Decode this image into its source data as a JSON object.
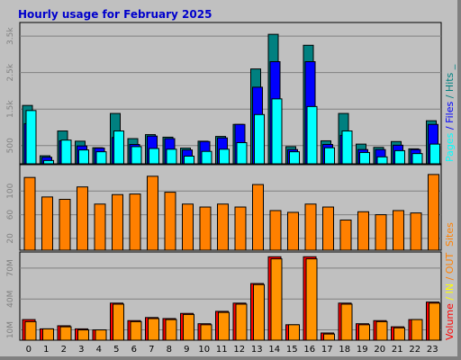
{
  "chart_data": {
    "type": "bar",
    "title": "Hourly usage for February 2025",
    "categories": [
      "0",
      "1",
      "2",
      "3",
      "4",
      "5",
      "6",
      "7",
      "8",
      "9",
      "10",
      "11",
      "12",
      "13",
      "14",
      "15",
      "16",
      "17",
      "18",
      "19",
      "20",
      "21",
      "22",
      "23"
    ],
    "colors": {
      "pages": "#00ffff",
      "files": "#0000ff",
      "hits": "#008080",
      "sites": "#ff8000",
      "volume": "#ff0000",
      "in": "#ffff00",
      "out": "#ff8000",
      "panel": "#c0c0c0",
      "grid": "#808080"
    },
    "panels": [
      {
        "id": "usage",
        "ylim": [
          0,
          3800
        ],
        "yticks": [
          500,
          1500,
          2500,
          3500
        ],
        "tick_labels": [
          "500",
          "1.5k",
          "2.5k",
          "3.5k"
        ],
        "legend": [
          "Pages",
          "Files",
          "Hits"
        ],
        "separators": [
          "/",
          "/",
          "_"
        ],
        "series": [
          {
            "name": "Hits",
            "values": [
              1600,
              220,
              900,
              620,
              440,
              1380,
              690,
              800,
              730,
              430,
              620,
              750,
              1080,
              2600,
              3550,
              470,
              3250,
              630,
              1380,
              540,
              450,
              610,
              410,
              1180
            ]
          },
          {
            "name": "Files",
            "values": [
              1100,
              180,
              630,
              490,
              430,
              720,
              530,
              760,
              690,
              380,
              610,
              710,
              1080,
              2100,
              2800,
              390,
              2800,
              530,
              780,
              390,
              390,
              510,
              390,
              1080
            ]
          },
          {
            "name": "Pages",
            "values": [
              1460,
              90,
              650,
              380,
              330,
              900,
              470,
              420,
              400,
              210,
              340,
              400,
              580,
              1350,
              1780,
              330,
              1570,
              440,
              900,
              310,
              190,
              360,
              280,
              540
            ]
          }
        ]
      },
      {
        "id": "sites",
        "ylim": [
          0,
          140
        ],
        "yticks": [
          20,
          60,
          100
        ],
        "tick_labels": [
          "20",
          "60",
          "100"
        ],
        "legend": [
          "Sites"
        ],
        "series": [
          {
            "name": "Sites",
            "values": [
              123,
              90,
              86,
              107,
              78,
              94,
              95,
              125,
              98,
              78,
              73,
              78,
              73,
              111,
              67,
              64,
              78,
              73,
              51,
              65,
              60,
              67,
              63,
              128
            ]
          }
        ]
      },
      {
        "id": "volume",
        "ylim": [
          0,
          83
        ],
        "yticks": [
          10,
          40,
          70
        ],
        "tick_labels": [
          "10M",
          "40M",
          "70M"
        ],
        "legend": [
          "Volume",
          "IN",
          "OUT"
        ],
        "separators": [
          "/",
          "/",
          ""
        ],
        "series": [
          {
            "name": "Volume",
            "values": [
              20,
              11,
              14,
              11,
              10,
              36,
              19,
              22,
              21,
              26,
              16,
              28,
              36,
              55,
              81,
              15,
              81,
              7,
              36,
              16,
              19,
              13,
              20,
              37
            ]
          },
          {
            "name": "OUT",
            "values": [
              18,
              11,
              13,
              10,
              10,
              35,
              18,
              21,
              20,
              25,
              15,
              27,
              35,
              54,
              79,
              15,
              79,
              6,
              35,
              15,
              18,
              12,
              20,
              36
            ]
          }
        ]
      }
    ]
  }
}
